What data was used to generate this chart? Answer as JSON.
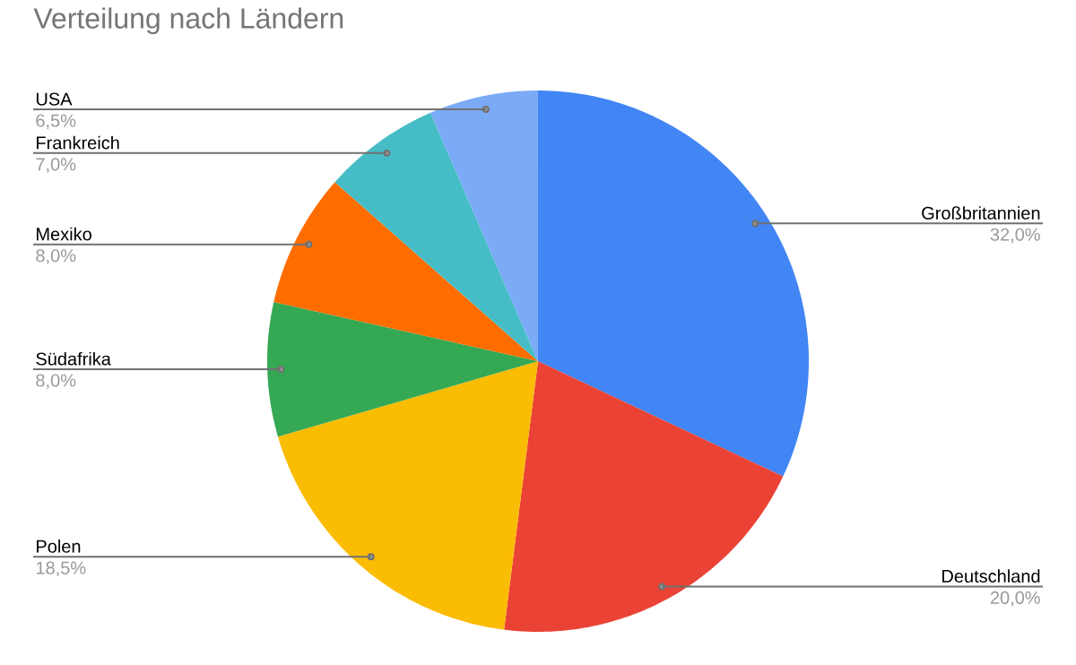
{
  "chart_data": {
    "type": "pie",
    "title": "Verteilung nach Ländern",
    "categories": [
      "Großbritannien",
      "Deutschland",
      "Polen",
      "Südafrika",
      "Mexiko",
      "Frankreich",
      "USA"
    ],
    "values": [
      32,
      20,
      18.5,
      8,
      8,
      7,
      6.5
    ],
    "colors": [
      "#4285f4",
      "#ea4335",
      "#fbbc04",
      "#34a853",
      "#ff6d01",
      "#46bdc6",
      "#7baaf7"
    ],
    "value_labels": [
      "32,0%",
      "20,0%",
      "18,5%",
      "8,0%",
      "8,0%",
      "7,0%",
      "6,5%"
    ]
  }
}
